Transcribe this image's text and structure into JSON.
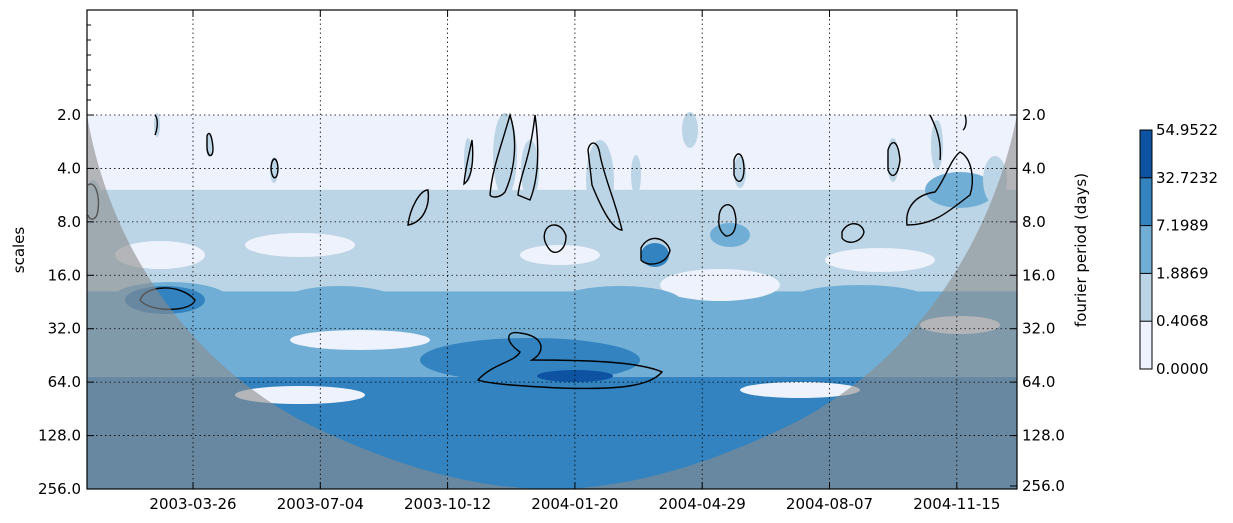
{
  "chart_data": {
    "type": "heatmap",
    "title": "",
    "ylabel_left": "scales",
    "ylabel_right": "fourier period (days)",
    "x_ticks": [
      "2003-03-26",
      "2003-07-04",
      "2003-10-12",
      "2004-01-20",
      "2004-04-29",
      "2004-08-07",
      "2004-11-15"
    ],
    "y_ticks_left": [
      "2.0",
      "4.0",
      "8.0",
      "16.0",
      "32.0",
      "64.0",
      "128.0",
      "256.0"
    ],
    "y_ticks_right": [
      "2.0",
      "4.0",
      "8.0",
      "16.0",
      "32.0",
      "64.0",
      "128.0",
      "256.0"
    ],
    "y_scale": "log2",
    "y_inverted": true,
    "grid": true,
    "colorbar": {
      "ticks": [
        "54.9522",
        "32.7232",
        "7.1989",
        "1.8869",
        "0.4068",
        "0.0000"
      ],
      "levels": [
        0.0,
        0.4068,
        1.8869,
        7.1989,
        32.7232,
        54.9522
      ],
      "colors": [
        "#eef2fc",
        "#bcd5e6",
        "#70aed6",
        "#3283c0",
        "#0d53a2"
      ],
      "placement": "right"
    },
    "contour_line_color": "#000000",
    "cone_of_influence_color": "#8c8c8c"
  }
}
